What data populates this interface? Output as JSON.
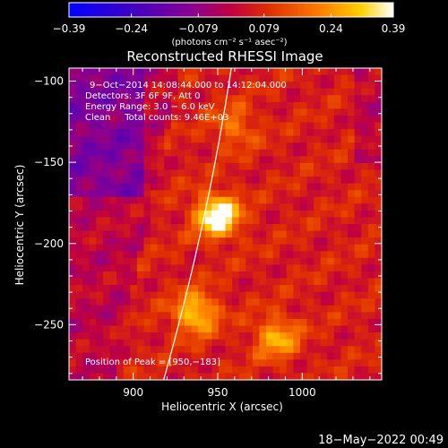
{
  "chart_data": {
    "type": "heatmap",
    "title": "Reconstructed RHESSI Image",
    "xlabel": "Heliocentric X (arcsec)",
    "ylabel": "Heliocentric Y (arcsec)",
    "xlim": [
      862,
      1047
    ],
    "ylim": [
      -284,
      -92
    ],
    "xticks": [
      900,
      950,
      1000
    ],
    "xtick_labels": [
      "900",
      "950",
      "1000"
    ],
    "yticks": [
      -100,
      -150,
      -200,
      -250
    ],
    "ytick_labels": [
      "−100",
      "−150",
      "−200",
      "−250"
    ],
    "colorbar": {
      "ticks": [
        -0.39,
        -0.24,
        -0.079,
        0.079,
        0.24,
        0.39
      ],
      "tick_labels": [
        "−0.39",
        "−0.24",
        "−0.079",
        "0.079",
        "0.24",
        "0.39"
      ],
      "unit_label": "(photons cm⁻² s⁻¹ asec⁻²)",
      "range": [
        -0.39,
        0.39
      ]
    },
    "annotations": [
      "9−Oct−2014 14:08:44.000 to 14:12:04.000",
      "Detectors: 3F 6F 9F, Att 0",
      "Energy Range: 3.0 − 6.0 keV",
      "Clean     Total counts: 9.46E+03"
    ],
    "peak_label": "Position of Peak = [950,−183]",
    "peak": {
      "x": 950,
      "y": -183
    },
    "bright_sources": [
      {
        "x": 950,
        "y": -183,
        "value": 0.39
      },
      {
        "x": 937,
        "y": -243,
        "value": 0.27
      },
      {
        "x": 985,
        "y": -258,
        "value": 0.22
      },
      {
        "x": 960,
        "y": -128,
        "value": 0.14
      }
    ],
    "limb": {
      "x_top": 958,
      "x_bottom": 918
    }
  },
  "footer": {
    "date": "18−May−2022 00:49"
  }
}
